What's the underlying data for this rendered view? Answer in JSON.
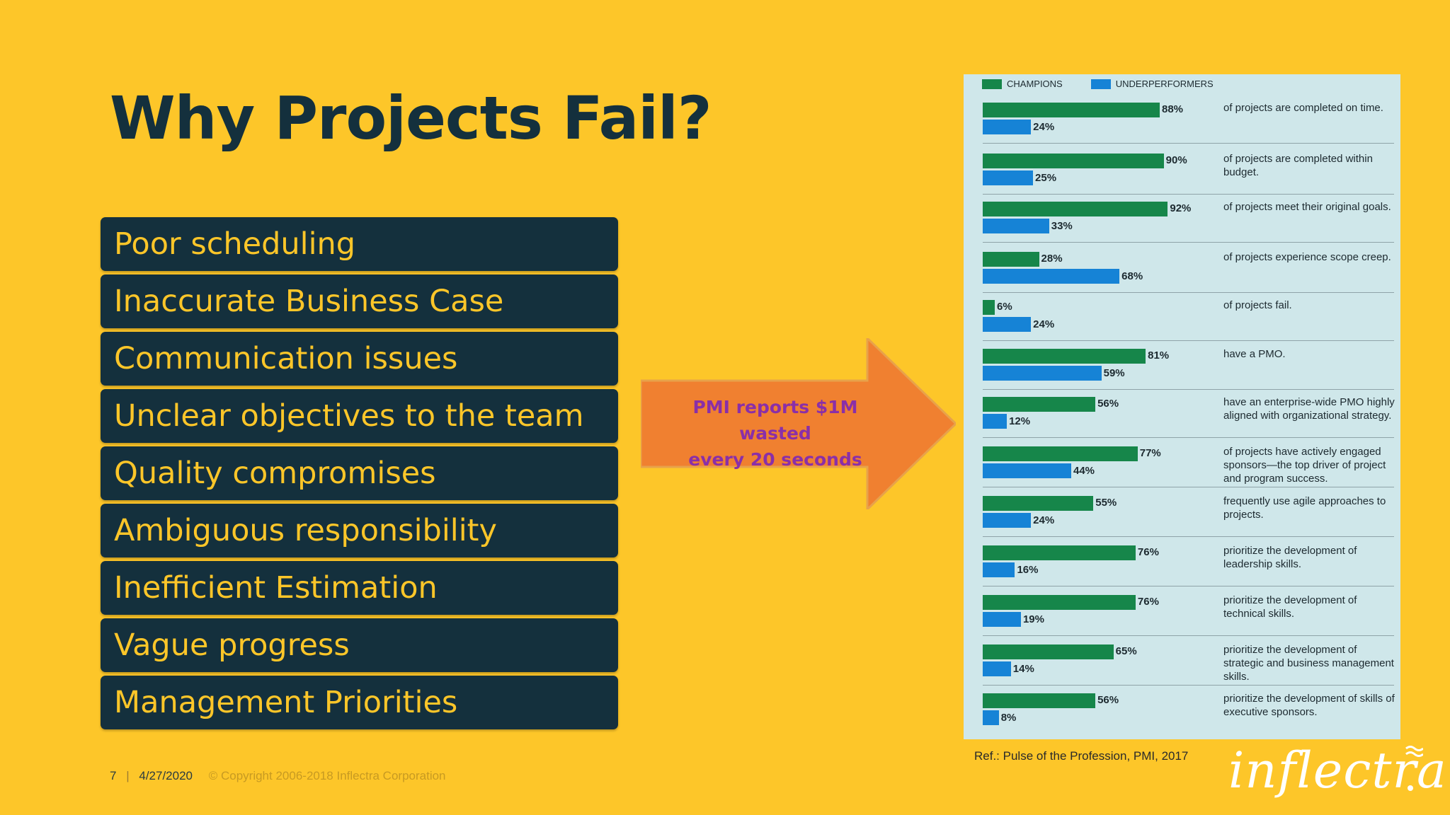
{
  "slide": {
    "title": "Why Projects Fail?",
    "reasons": [
      "Poor scheduling",
      "Inaccurate Business Case",
      "Communication issues",
      "Unclear objectives to the team",
      "Quality compromises",
      "Ambiguous responsibility",
      "Inefficient Estimation",
      "Vague progress",
      "Management Priorities"
    ],
    "arrow_text": [
      "PMI reports $1M wasted",
      "every 20 seconds"
    ],
    "reference": "Ref.: Pulse of the Profession, PMI, 2017",
    "footer": {
      "page_number": "7",
      "separator": "|",
      "date": "4/27/2020",
      "copyright": "© Copyright 2006-2018 Inflectra Corporation"
    },
    "logo_text": "inflectra",
    "colors": {
      "background": "#fdc629",
      "dark": "#14303d",
      "arrow": "#f08030",
      "arrow_text": "#8a2fa8",
      "champions": "#16864a",
      "underperformers": "#1683d6",
      "panel": "#cfe7ea"
    }
  },
  "chart_data": {
    "type": "bar",
    "orientation": "horizontal",
    "legend": [
      "CHAMPIONS",
      "UNDERPERFORMERS"
    ],
    "legend_position": "top-left",
    "xlim": [
      0,
      100
    ],
    "unit": "%",
    "categories": [
      "of projects are completed on time.",
      "of projects are completed within budget.",
      "of projects meet their original goals.",
      "of projects experience scope creep.",
      "of projects fail.",
      "have a PMO.",
      "have an enterprise-wide PMO highly aligned with organizational strategy.",
      "of projects have actively engaged sponsors—the top driver of project and program success.",
      "frequently use agile approaches to projects.",
      "prioritize the development of leadership skills.",
      "prioritize the development of technical skills.",
      "prioritize the development of strategic and business management skills.",
      "prioritize the development of skills of executive sponsors."
    ],
    "series": [
      {
        "name": "CHAMPIONS",
        "values": [
          88,
          90,
          92,
          28,
          6,
          81,
          56,
          77,
          55,
          76,
          76,
          65,
          56
        ]
      },
      {
        "name": "UNDERPERFORMERS",
        "values": [
          24,
          25,
          33,
          68,
          24,
          59,
          12,
          44,
          24,
          16,
          19,
          14,
          8
        ]
      }
    ]
  }
}
